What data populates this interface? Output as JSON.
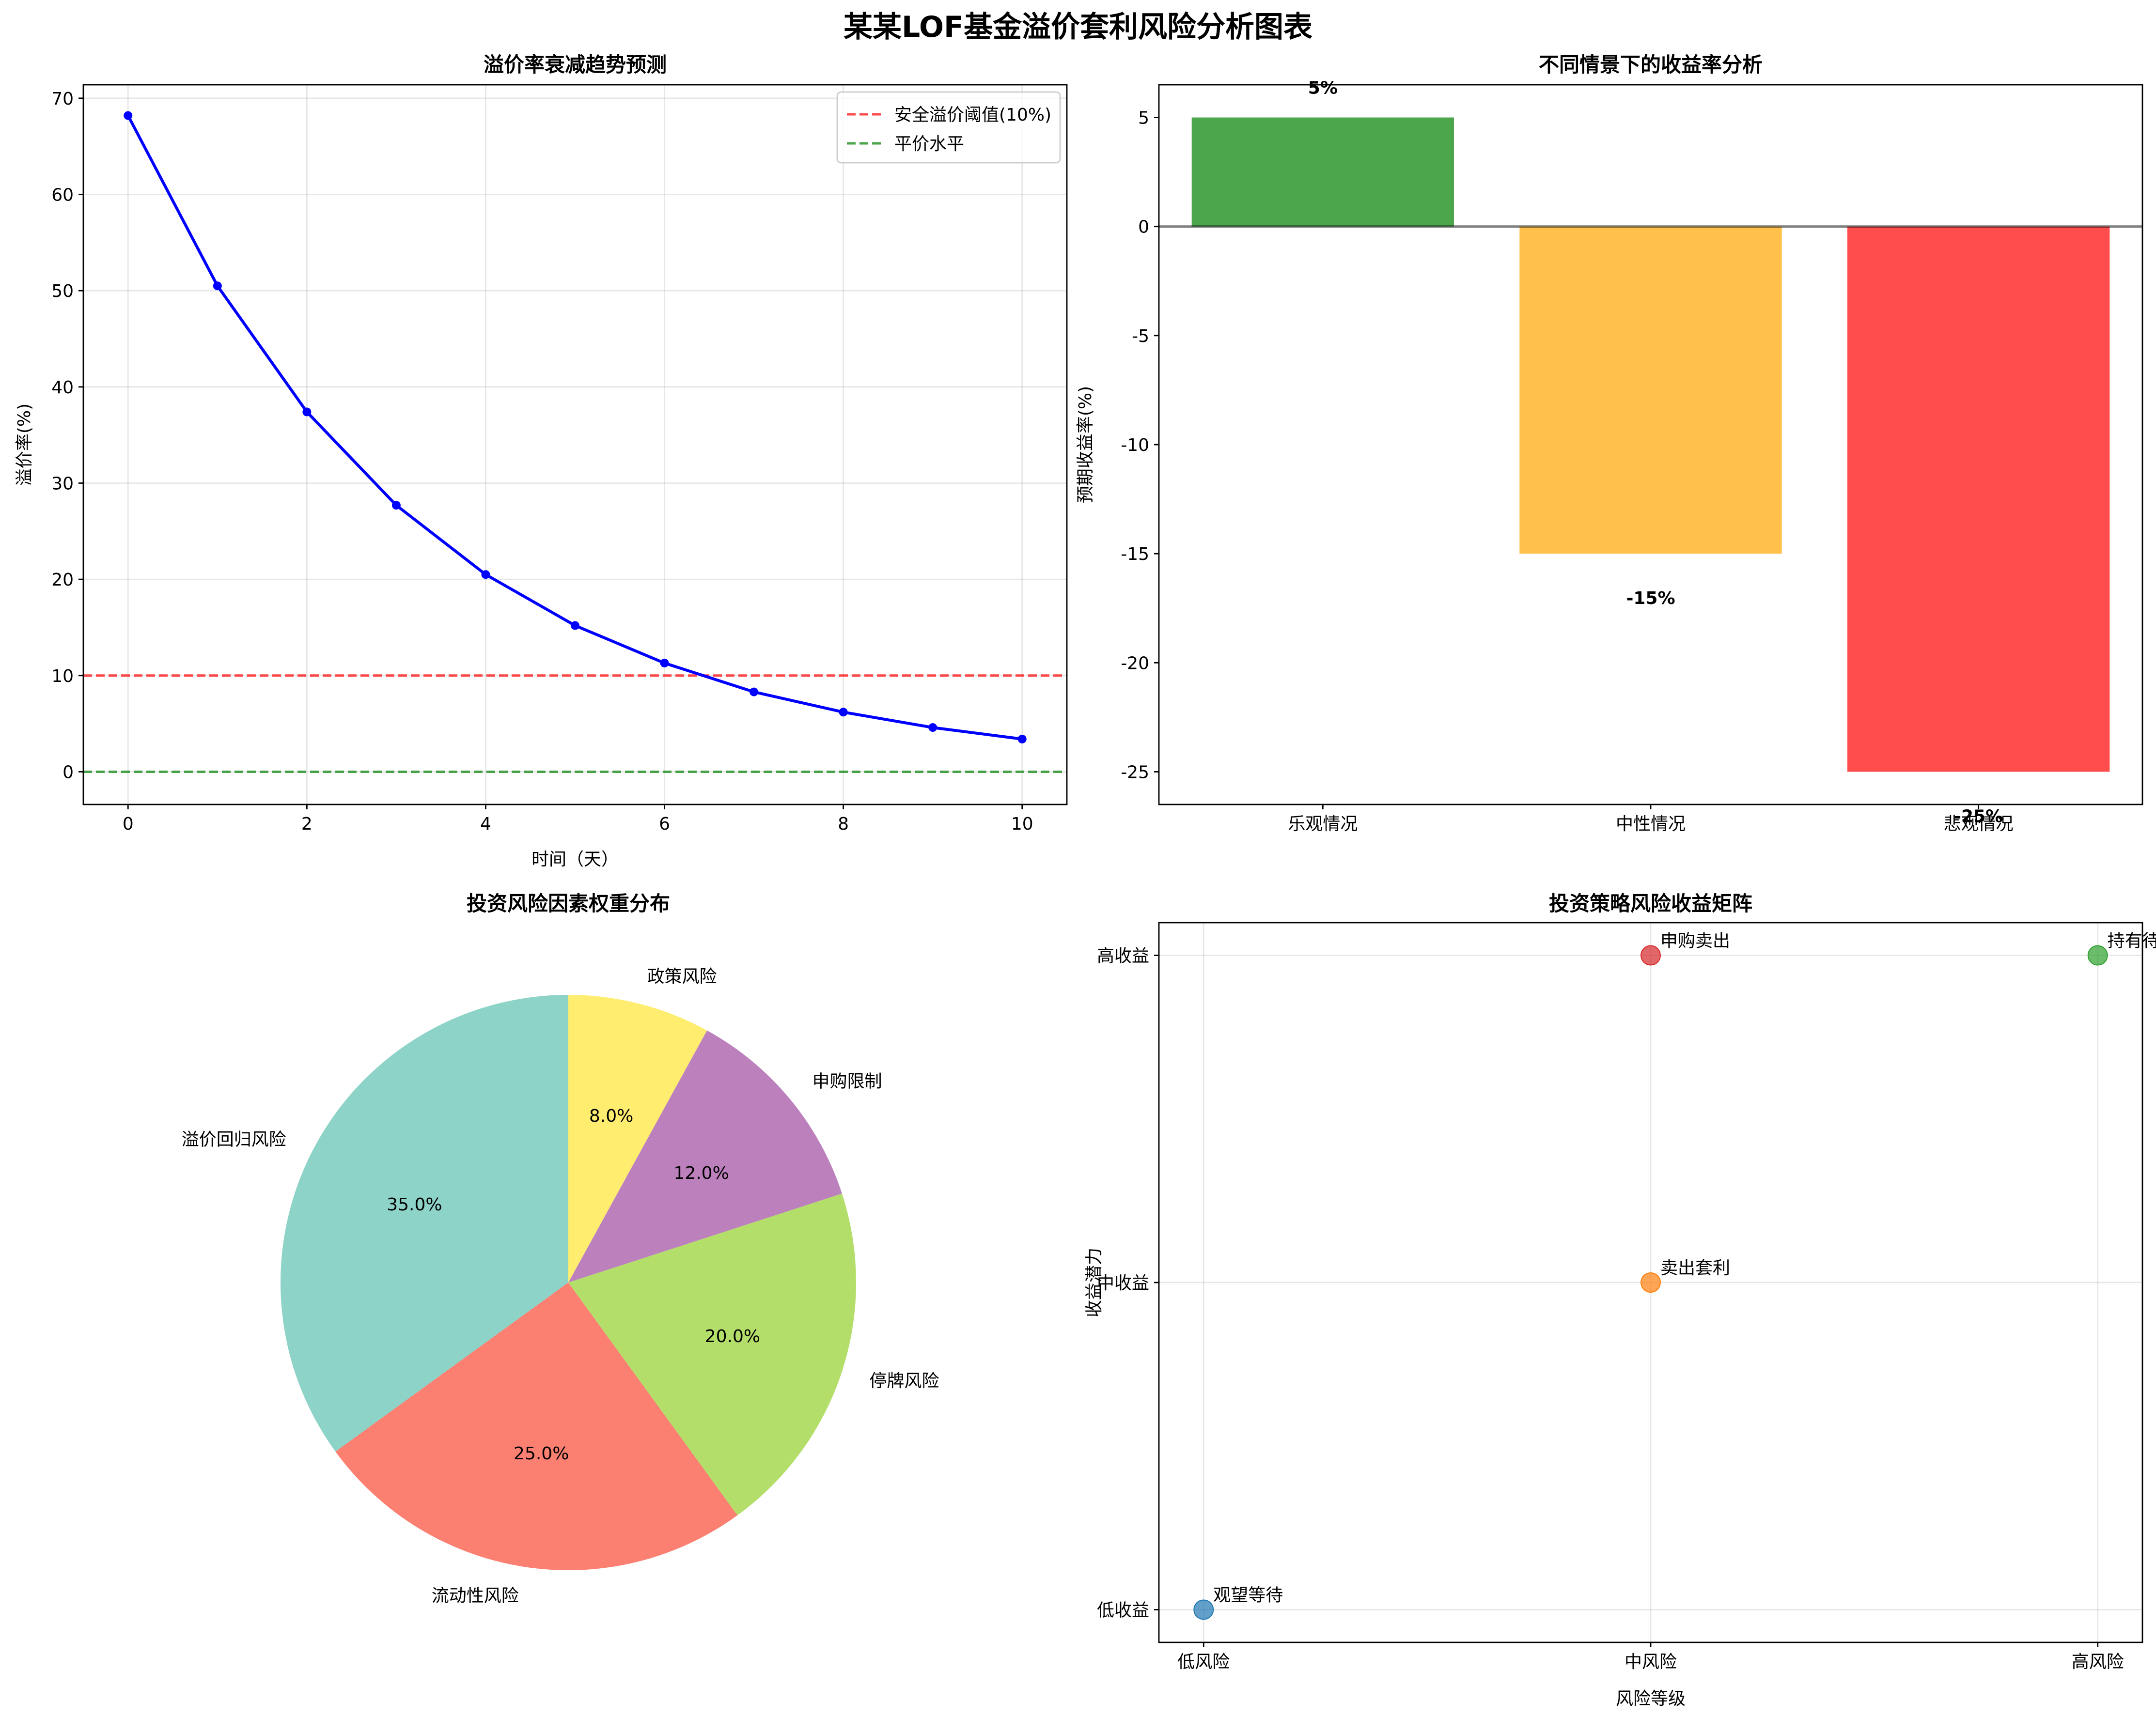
{
  "figure": {
    "suptitle": "某某LOF基金溢价套利风险分析图表"
  },
  "chart_data": [
    {
      "type": "line",
      "title": "溢价率衰减趋势预测",
      "xlabel": "时间（天）",
      "ylabel": "溢价率(%)",
      "xlim": [
        -0.5,
        10.5
      ],
      "ylim": [
        -3.4,
        71.4
      ],
      "xticks": [
        "0",
        "2",
        "4",
        "6",
        "8",
        "10"
      ],
      "yticks": [
        "0",
        "10",
        "20",
        "30",
        "40",
        "50",
        "60",
        "70"
      ],
      "x": [
        0,
        1,
        2,
        3,
        4,
        5,
        6,
        7,
        8,
        9,
        10
      ],
      "y": [
        68.2,
        50.5,
        37.4,
        27.7,
        20.5,
        15.2,
        11.3,
        8.3,
        6.2,
        4.6,
        3.4
      ],
      "hlines": [
        {
          "y": 10,
          "label": "安全溢价阈值(10%)",
          "color": "#ff0000"
        },
        {
          "y": 0,
          "label": "平价水平",
          "color": "#008000"
        }
      ],
      "legend_position": "upper right",
      "grid": true
    },
    {
      "type": "bar",
      "title": "不同情景下的收益率分析",
      "ylabel": "预期收益率(%)",
      "ylim": [
        -26.5,
        6.5
      ],
      "yticks": [
        "-25",
        "-20",
        "-15",
        "-10",
        "-5",
        "0",
        "5"
      ],
      "categories": [
        "乐观情况",
        "中性情况",
        "悲观情况"
      ],
      "values": [
        5,
        -15,
        -25
      ],
      "labels": [
        "5%",
        "-15%",
        "-25%"
      ],
      "colors": [
        "#008000",
        "#ffa500",
        "#ff0000"
      ],
      "grid": false
    },
    {
      "type": "pie",
      "title": "投资风险因素权重分布",
      "labels": [
        "溢价回归风险",
        "流动性风险",
        "停牌风险",
        "申购限制",
        "政策风险"
      ],
      "values": [
        35.0,
        25.0,
        20.0,
        12.0,
        8.0
      ],
      "pct_labels": [
        "35.0%",
        "25.0%",
        "20.0%",
        "12.0%",
        "8.0%"
      ],
      "colors": [
        "#8dd3c7",
        "#fb8072",
        "#b3de69",
        "#bc80bd",
        "#ffed6f"
      ],
      "start_angle": 90,
      "direction": "counterclockwise"
    },
    {
      "type": "scatter",
      "title": "投资策略风险收益矩阵",
      "xlabel": "风险等级",
      "ylabel": "收益潜力",
      "xticks": [
        "低风险",
        "中风险",
        "高风险"
      ],
      "yticks": [
        "低收益",
        "中收益",
        "高收益"
      ],
      "xlim": [
        -0.1,
        2.1
      ],
      "ylim": [
        -0.1,
        2.1
      ],
      "grid": true,
      "points": [
        {
          "label": "观望等待",
          "x": 0,
          "y": 0,
          "color": "#1f77b4"
        },
        {
          "label": "卖出套利",
          "x": 1,
          "y": 1,
          "color": "#ff7f0e"
        },
        {
          "label": "持有待涨",
          "x": 2,
          "y": 2,
          "color": "#2ca02c"
        },
        {
          "label": "申购卖出",
          "x": 1,
          "y": 2,
          "color": "#d62728"
        }
      ]
    }
  ]
}
